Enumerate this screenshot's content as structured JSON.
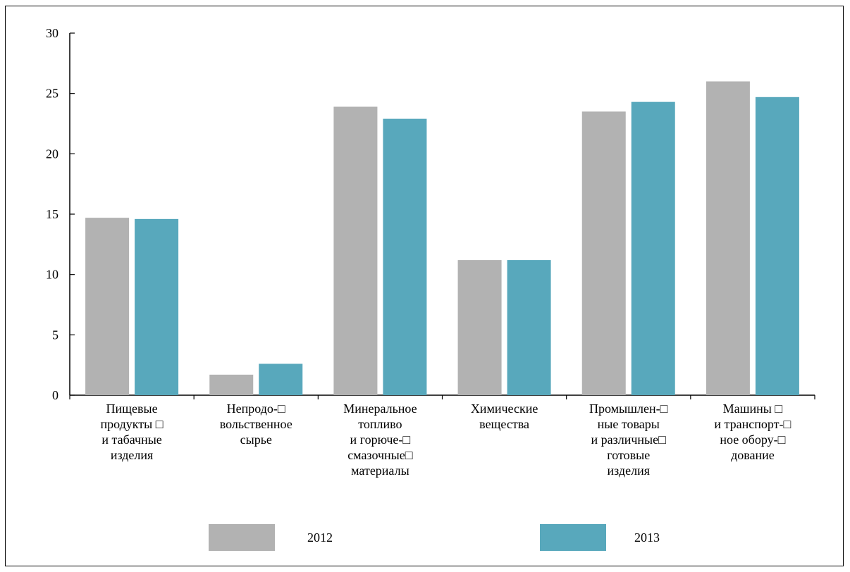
{
  "chart_data": {
    "type": "bar",
    "categories": [
      [
        "Пищевые",
        "продукты □",
        "и табачные",
        "изделия"
      ],
      [
        "Непродо-□",
        "вольственное",
        "сырье"
      ],
      [
        "Минеральное",
        "топливо",
        "и горюче-□",
        "смазочные□",
        "материалы"
      ],
      [
        "Химические",
        "вещества"
      ],
      [
        "Промышлен-□",
        "ные товары",
        "и различные□",
        "готовые",
        "изделия"
      ],
      [
        "Машины □",
        "и транспорт-□",
        "ное обору-□",
        "дование"
      ]
    ],
    "series": [
      {
        "name": "2012",
        "color": "#b2b2b2",
        "values": [
          14.7,
          1.7,
          23.9,
          11.2,
          23.5,
          26.0
        ]
      },
      {
        "name": "2013",
        "color": "#58a8bc",
        "values": [
          14.6,
          2.6,
          22.9,
          11.2,
          24.3,
          24.7
        ]
      }
    ],
    "yticks": [
      0,
      5,
      10,
      15,
      20,
      25,
      30
    ],
    "ylim": [
      0,
      30
    ],
    "xlabel": "",
    "ylabel": "",
    "title": "",
    "grid": false,
    "legend_position": "bottom"
  }
}
